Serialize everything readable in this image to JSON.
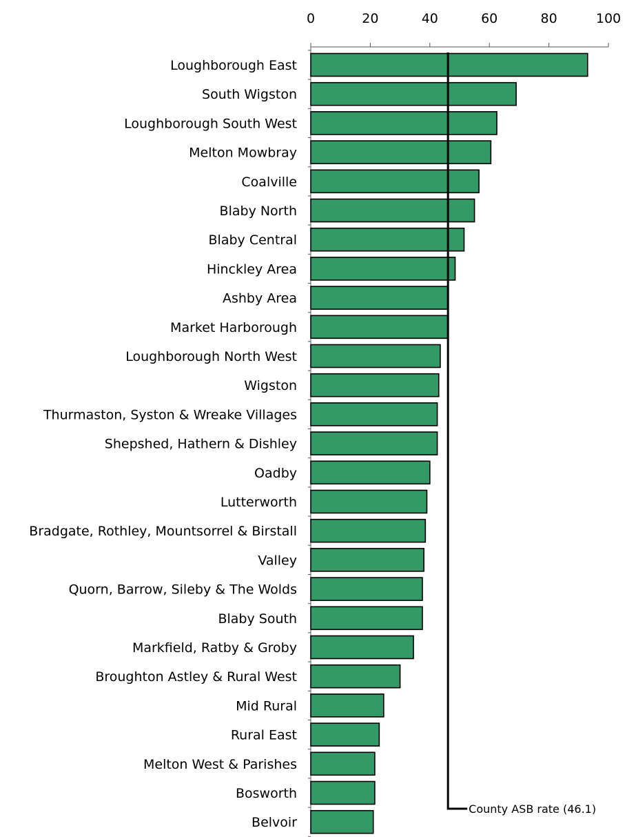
{
  "chart_data": {
    "type": "bar",
    "orientation": "horizontal",
    "categories": [
      "Loughborough East",
      "South Wigston",
      "Loughborough South West",
      "Melton Mowbray",
      "Coalville",
      "Blaby North",
      "Blaby Central",
      "Hinckley Area",
      "Ashby Area",
      "Market Harborough",
      "Loughborough North West",
      "Wigston",
      "Thurmaston, Syston & Wreake Villages",
      "Shepshed, Hathern & Dishley",
      "Oadby",
      "Lutterworth",
      "Bradgate, Rothley, Mountsorrel & Birstall",
      "Valley",
      "Quorn, Barrow, Sileby & The Wolds",
      "Blaby South",
      "Markfield, Ratby & Groby",
      "Broughton Astley & Rural West",
      "Mid Rural",
      "Rural East",
      "Melton West & Parishes",
      "Bosworth",
      "Belvoir"
    ],
    "values": [
      93,
      69,
      62.5,
      60.5,
      56.5,
      55,
      51.5,
      48.5,
      46,
      46,
      43.5,
      43,
      42.5,
      42.5,
      40,
      39,
      38.5,
      38,
      37.5,
      37.5,
      34.5,
      30,
      24.5,
      23,
      21.5,
      21.5,
      21
    ],
    "xlim": [
      0,
      100
    ],
    "ticks": [
      "0",
      "20",
      "40",
      "60",
      "80",
      "100"
    ],
    "tick_values": [
      0,
      20,
      40,
      60,
      80,
      100
    ],
    "xlabel": "",
    "ylabel": "",
    "title": "",
    "grid": false,
    "bar_color": "#339966",
    "reference_line": {
      "value": 46.1,
      "label": "County ASB rate (46.1)"
    }
  }
}
